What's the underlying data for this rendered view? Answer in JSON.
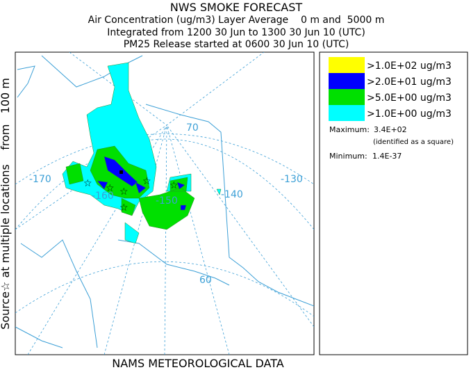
{
  "header": {
    "title": "NWS SMOKE FORECAST",
    "lines": [
      "Air Concentration (ug/m3) Layer Average    0 m and  5000 m",
      "Integrated from 1200 30 Jun to 1300 30 Jun 10 (UTC)",
      "PM25 Release started at 0600 30 Jun 10 (UTC)"
    ]
  },
  "side_label": "Source☆ at multiple locations    from   100 m",
  "footer": "NAMS METEOROLOGICAL DATA",
  "legend": {
    "items": [
      {
        "label": ">1.0E+02 ug/m3",
        "color": "#ffff00"
      },
      {
        "label": ">2.0E+01 ug/m3",
        "color": "#0000ff"
      },
      {
        "label": ">5.0E+00 ug/m3",
        "color": "#00e000"
      },
      {
        "label": ">1.0E+00 ug/m3",
        "color": "#00ffff"
      }
    ]
  },
  "stats": {
    "maximum_label": "Maximum:",
    "maximum": "3.4E+02",
    "maximum_note": "(identified as a square)",
    "minimum_label": "Minimum:",
    "minimum": "1.4E-37"
  },
  "map": {
    "labels": [
      "-170",
      "-160",
      "-150",
      "-140",
      "-130",
      "70",
      "60"
    ]
  }
}
